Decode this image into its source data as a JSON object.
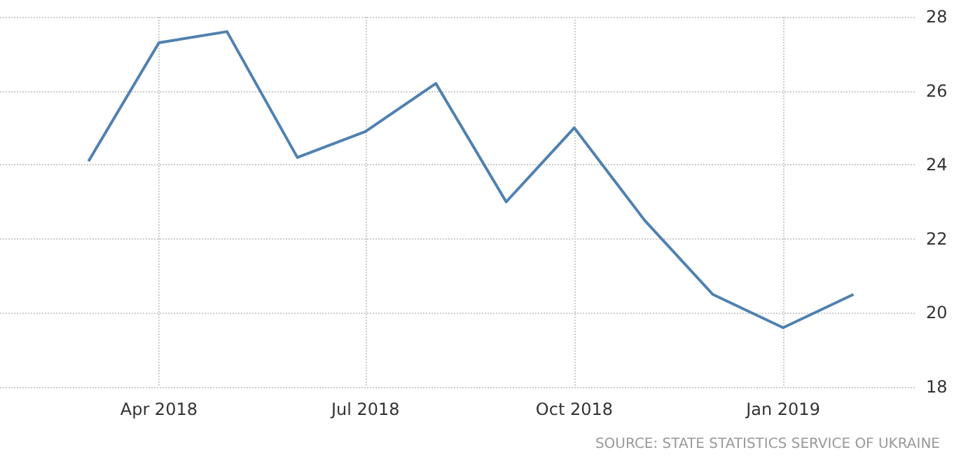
{
  "chart_data": {
    "type": "line",
    "x": [
      "2018-03",
      "2018-04",
      "2018-05",
      "2018-06",
      "2018-07",
      "2018-08",
      "2018-09",
      "2018-10",
      "2018-11",
      "2018-12",
      "2019-01",
      "2019-02"
    ],
    "series": [
      {
        "color": "#4f81b0",
        "values": [
          24.1,
          27.3,
          27.6,
          24.2,
          24.9,
          26.2,
          23.0,
          25.0,
          22.5,
          20.5,
          19.6,
          20.5
        ]
      }
    ],
    "xlim": [
      "2018-01-21",
      "2019-02-28"
    ],
    "xticks": [
      {
        "value": "2018-04",
        "label": "Apr 2018"
      },
      {
        "value": "2018-07",
        "label": "Jul 2018"
      },
      {
        "value": "2018-10",
        "label": "Oct 2018"
      },
      {
        "value": "2019-01",
        "label": "Jan 2019"
      }
    ],
    "ylim": [
      18,
      28
    ],
    "yticks": [
      18,
      20,
      22,
      24,
      26,
      28
    ],
    "grid": true,
    "marker": "none",
    "line_style": "solid",
    "annotations": [
      "SOURCE: STATE STATISTICS SERVICE OF UKRAINE"
    ]
  }
}
